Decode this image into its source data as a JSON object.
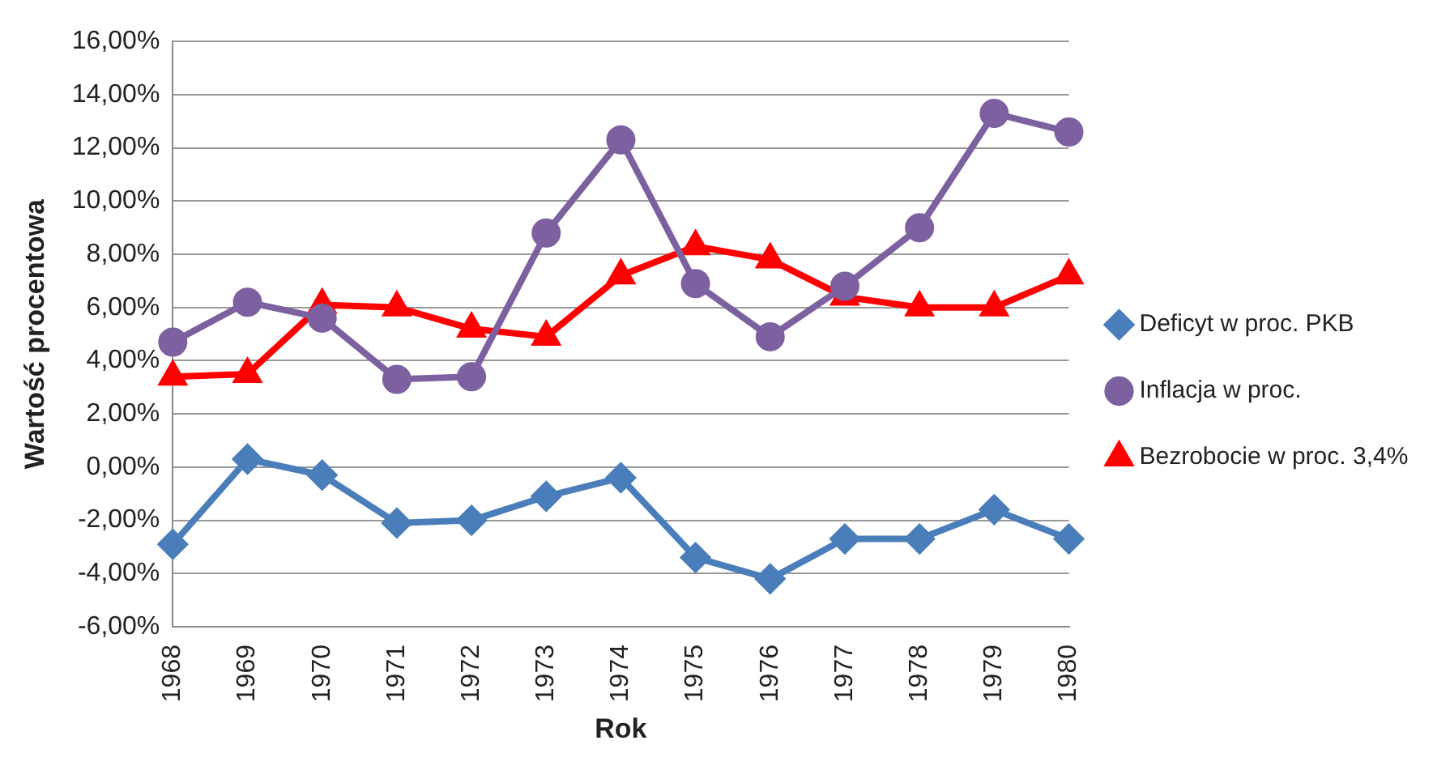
{
  "chart_data": {
    "type": "line",
    "xlabel": "Rok",
    "ylabel": "Wartość procentowa",
    "categories": [
      "1968",
      "1969",
      "1970",
      "1971",
      "1972",
      "1973",
      "1974",
      "1975",
      "1976",
      "1977",
      "1978",
      "1979",
      "1980"
    ],
    "series": [
      {
        "name": "Deficyt w proc. PKB",
        "color": "#4a7ebb",
        "marker": "diamond",
        "values": [
          -2.9,
          0.3,
          -0.3,
          -2.1,
          -2.0,
          -1.1,
          -0.4,
          -3.4,
          -4.2,
          -2.7,
          -2.7,
          -1.6,
          -2.7
        ]
      },
      {
        "name": "Inflacja w proc.",
        "color": "#7d60a0",
        "marker": "circle",
        "values": [
          4.7,
          6.2,
          5.6,
          3.3,
          3.4,
          8.8,
          12.3,
          6.9,
          4.9,
          6.8,
          9.0,
          13.3,
          12.6
        ]
      },
      {
        "name": "Bezrobocie w proc. 3,4%",
        "color": "#ff0000",
        "marker": "triangle",
        "values": [
          3.4,
          3.5,
          6.1,
          6.0,
          5.2,
          4.9,
          7.2,
          8.3,
          7.8,
          6.4,
          6.0,
          6.0,
          7.2
        ]
      }
    ],
    "ylim": [
      -6,
      16
    ],
    "yticks": [
      {
        "value": -6,
        "label": "-6,00%"
      },
      {
        "value": -4,
        "label": "-4,00%"
      },
      {
        "value": -2,
        "label": "-2,00%"
      },
      {
        "value": 0,
        "label": "0,00%"
      },
      {
        "value": 2,
        "label": "2,00%"
      },
      {
        "value": 4,
        "label": "4,00%"
      },
      {
        "value": 6,
        "label": "6,00%"
      },
      {
        "value": 8,
        "label": "8,00%"
      },
      {
        "value": 10,
        "label": "10,00%"
      },
      {
        "value": 12,
        "label": "12,00%"
      },
      {
        "value": 14,
        "label": "14,00%"
      },
      {
        "value": 16,
        "label": "16,00%"
      }
    ],
    "grid": "y",
    "legend": "right",
    "line_style": "solid"
  }
}
